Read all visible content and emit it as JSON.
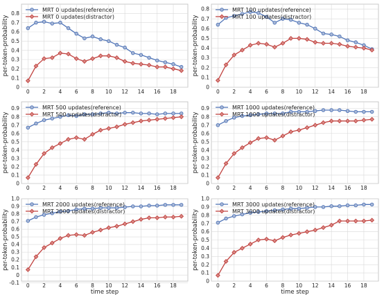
{
  "colors": {
    "reference": "#4f74b7",
    "distractor": "#c0413e",
    "marker_fill": "#a9b8d6",
    "marker_fill_red": "#d98a86",
    "grid": "#d9d9d9"
  },
  "chart_data": [
    {
      "type": "line",
      "x": [
        0,
        1,
        2,
        3,
        4,
        5,
        6,
        7,
        8,
        9,
        10,
        11,
        12,
        13,
        14,
        15,
        16,
        17,
        18,
        19
      ],
      "xticks": [
        0,
        2,
        4,
        6,
        8,
        10,
        12,
        14,
        16,
        18
      ],
      "xlim": [
        -0.8,
        19.8
      ],
      "ylim": [
        0,
        0.9
      ],
      "yticks": [
        "0",
        "0.1",
        "0.2",
        "0.3",
        "0.4",
        "0.5",
        "0.6",
        "0.7",
        "0.8"
      ],
      "ylabel": "per-token-probability",
      "xlabel": "",
      "grid": true,
      "legend": "top-left",
      "series": [
        {
          "name": "MRT    0 updates(reference)",
          "values": [
            0.64,
            0.7,
            0.71,
            0.69,
            0.7,
            0.64,
            0.58,
            0.53,
            0.55,
            0.52,
            0.5,
            0.46,
            0.43,
            0.37,
            0.35,
            0.32,
            0.29,
            0.27,
            0.25,
            0.22
          ]
        },
        {
          "name": "MRT    0 updates(distractor)",
          "values": [
            0.07,
            0.23,
            0.31,
            0.32,
            0.37,
            0.36,
            0.31,
            0.28,
            0.31,
            0.34,
            0.34,
            0.32,
            0.28,
            0.26,
            0.25,
            0.24,
            0.22,
            0.22,
            0.2,
            0.18
          ]
        }
      ]
    },
    {
      "type": "line",
      "x": [
        0,
        1,
        2,
        3,
        4,
        5,
        6,
        7,
        8,
        9,
        10,
        11,
        12,
        13,
        14,
        15,
        16,
        17,
        18,
        19
      ],
      "xticks": [
        0,
        2,
        4,
        6,
        8,
        10,
        12,
        14,
        16,
        18
      ],
      "xlim": [
        -0.8,
        19.8
      ],
      "ylim": [
        0,
        0.85
      ],
      "yticks": [
        "0",
        "0.1",
        "0.2",
        "0.3",
        "0.4",
        "0.5",
        "0.6",
        "0.7",
        "0.8"
      ],
      "ylabel": "per-token-probability",
      "xlabel": "",
      "grid": true,
      "legend": "top-left",
      "series": [
        {
          "name": "MRT    100 updates(reference)",
          "values": [
            0.64,
            0.71,
            0.73,
            0.75,
            0.77,
            0.76,
            0.72,
            0.66,
            0.7,
            0.69,
            0.66,
            0.64,
            0.6,
            0.55,
            0.54,
            0.52,
            0.48,
            0.46,
            0.43,
            0.39
          ]
        },
        {
          "name": "MRT    100 updates(distractor)",
          "values": [
            0.07,
            0.23,
            0.33,
            0.38,
            0.43,
            0.45,
            0.44,
            0.41,
            0.45,
            0.5,
            0.5,
            0.49,
            0.46,
            0.45,
            0.45,
            0.44,
            0.42,
            0.41,
            0.4,
            0.38
          ]
        }
      ]
    },
    {
      "type": "line",
      "x": [
        0,
        1,
        2,
        3,
        4,
        5,
        6,
        7,
        8,
        9,
        10,
        11,
        12,
        13,
        14,
        15,
        16,
        17,
        18,
        19
      ],
      "xticks": [
        0,
        2,
        4,
        6,
        8,
        10,
        12,
        14,
        16,
        18
      ],
      "xlim": [
        -0.8,
        19.8
      ],
      "ylim": [
        0,
        0.98
      ],
      "yticks": [
        "0",
        "0.1",
        "0.2",
        "0.3",
        "0.4",
        "0.5",
        "0.6",
        "0.7",
        "0.8",
        "0.9"
      ],
      "ylabel": "per-token-probability",
      "xlabel": "",
      "grid": true,
      "legend": "top-left",
      "series": [
        {
          "name": "MRT   500 updates(reference)",
          "values": [
            0.67,
            0.72,
            0.76,
            0.78,
            0.8,
            0.82,
            0.81,
            0.83,
            0.83,
            0.84,
            0.85,
            0.84,
            0.85,
            0.85,
            0.84,
            0.84,
            0.83,
            0.84,
            0.84,
            0.84
          ]
        },
        {
          "name": "MRT   500 updates(distractor)",
          "values": [
            0.07,
            0.23,
            0.36,
            0.43,
            0.48,
            0.53,
            0.55,
            0.53,
            0.59,
            0.64,
            0.66,
            0.68,
            0.71,
            0.73,
            0.75,
            0.76,
            0.77,
            0.78,
            0.79,
            0.8
          ]
        }
      ]
    },
    {
      "type": "line",
      "x": [
        0,
        1,
        2,
        3,
        4,
        5,
        6,
        7,
        8,
        9,
        10,
        11,
        12,
        13,
        14,
        15,
        16,
        17,
        18,
        19
      ],
      "xticks": [
        0,
        2,
        4,
        6,
        8,
        10,
        12,
        14,
        16,
        18
      ],
      "xlim": [
        -0.8,
        19.8
      ],
      "ylim": [
        0,
        0.98
      ],
      "yticks": [
        "0",
        "0.1",
        "0.2",
        "0.3",
        "0.4",
        "0.5",
        "0.6",
        "0.7",
        "0.8",
        "0.9"
      ],
      "ylabel": "per-token-probability",
      "xlabel": "",
      "grid": true,
      "legend": "top-left",
      "series": [
        {
          "name": "MRT 1000 updates(reference)",
          "values": [
            0.7,
            0.75,
            0.79,
            0.81,
            0.82,
            0.83,
            0.84,
            0.84,
            0.84,
            0.86,
            0.86,
            0.86,
            0.87,
            0.88,
            0.88,
            0.88,
            0.87,
            0.86,
            0.86,
            0.86
          ]
        },
        {
          "name": "MRT 1000 updates(distractor)",
          "values": [
            0.07,
            0.24,
            0.36,
            0.43,
            0.49,
            0.54,
            0.55,
            0.52,
            0.57,
            0.62,
            0.64,
            0.67,
            0.7,
            0.73,
            0.75,
            0.75,
            0.75,
            0.75,
            0.76,
            0.77
          ]
        }
      ]
    },
    {
      "type": "line",
      "x": [
        0,
        1,
        2,
        3,
        4,
        5,
        6,
        7,
        8,
        9,
        10,
        11,
        12,
        13,
        14,
        15,
        16,
        17,
        18,
        19
      ],
      "xticks": [
        0,
        2,
        4,
        6,
        8,
        10,
        12,
        14,
        16,
        18
      ],
      "xlim": [
        -0.8,
        19.8
      ],
      "ylim": [
        -0.08,
        1.0
      ],
      "yticks": [
        "-0.1",
        "0",
        "0.1",
        "0.2",
        "0.3",
        "0.4",
        "0.5",
        "0.6",
        "0.7",
        "0.8",
        "0.9",
        "1.0"
      ],
      "ylabel": "per-token-probability",
      "xlabel": "time step",
      "grid": true,
      "legend": "top-left",
      "series": [
        {
          "name": "MRT 2000 updates(reference)",
          "values": [
            0.71,
            0.76,
            0.79,
            0.81,
            0.83,
            0.84,
            0.86,
            0.87,
            0.87,
            0.88,
            0.88,
            0.88,
            0.89,
            0.9,
            0.9,
            0.91,
            0.91,
            0.92,
            0.92,
            0.92
          ]
        },
        {
          "name": "MRT 2000 updates(distractor)",
          "values": [
            0.07,
            0.24,
            0.36,
            0.42,
            0.48,
            0.52,
            0.53,
            0.52,
            0.56,
            0.59,
            0.62,
            0.64,
            0.67,
            0.7,
            0.73,
            0.75,
            0.75,
            0.76,
            0.76,
            0.77
          ]
        }
      ]
    },
    {
      "type": "line",
      "x": [
        0,
        1,
        2,
        3,
        4,
        5,
        6,
        7,
        8,
        9,
        10,
        11,
        12,
        13,
        14,
        15,
        16,
        17,
        18,
        19
      ],
      "xticks": [
        0,
        2,
        4,
        6,
        8,
        10,
        12,
        14,
        16,
        18
      ],
      "xlim": [
        -0.8,
        19.8
      ],
      "ylim": [
        0,
        1.0
      ],
      "yticks": [
        "0",
        "0.1",
        "0.2",
        "0.3",
        "0.4",
        "0.5",
        "0.6",
        "0.7",
        "0.8",
        "0.9",
        "1.0"
      ],
      "ylabel": "per-token-probability",
      "xlabel": "time step",
      "grid": true,
      "legend": "top-left",
      "series": [
        {
          "name": "MRT 3000 updates(reference)",
          "values": [
            0.71,
            0.76,
            0.79,
            0.81,
            0.83,
            0.84,
            0.85,
            0.86,
            0.87,
            0.88,
            0.88,
            0.89,
            0.9,
            0.9,
            0.91,
            0.91,
            0.92,
            0.92,
            0.93,
            0.93
          ]
        },
        {
          "name": "MRT 3000 updates(distractor)",
          "values": [
            0.07,
            0.24,
            0.35,
            0.4,
            0.45,
            0.5,
            0.51,
            0.49,
            0.53,
            0.56,
            0.58,
            0.6,
            0.62,
            0.65,
            0.68,
            0.73,
            0.73,
            0.73,
            0.73,
            0.74
          ]
        }
      ]
    }
  ]
}
